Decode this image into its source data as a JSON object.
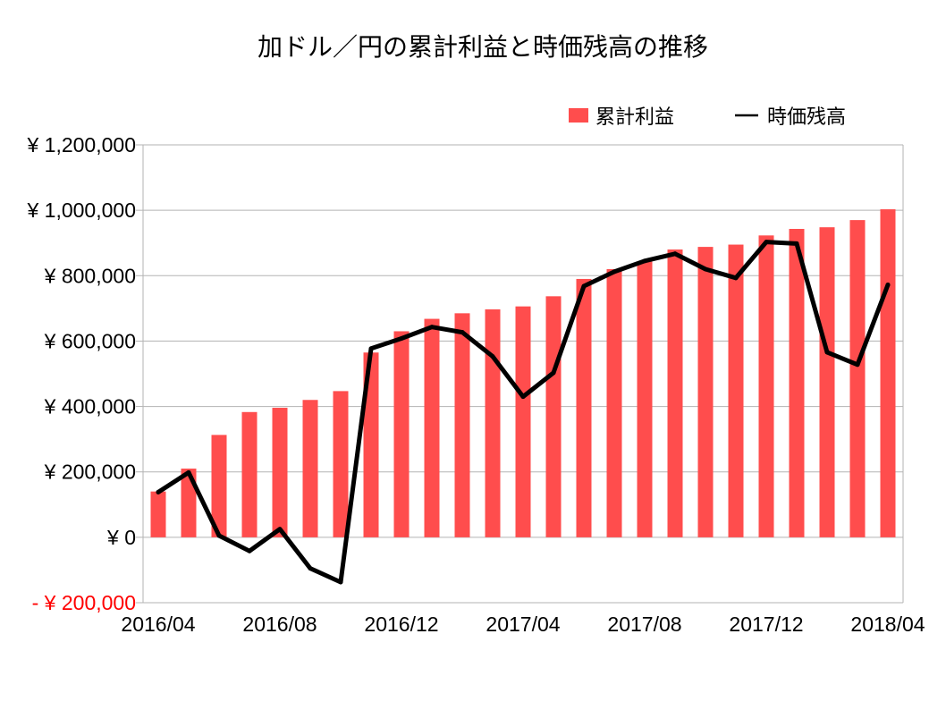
{
  "colors": {
    "bar": "#ff4d4d",
    "line": "#000000",
    "grid": "#b3b3b3",
    "negative": "#ff0000"
  },
  "chart_data": {
    "type": "bar+line",
    "title": "加ドル／円の累計利益と時価残高の推移",
    "xlabel": "",
    "ylabel": "",
    "ylim": [
      -200000,
      1200000
    ],
    "yticks": [
      1200000,
      1000000,
      800000,
      600000,
      400000,
      200000,
      0,
      -200000
    ],
    "ytick_labels": [
      "¥ 1,200,000",
      "¥ 1,000,000",
      "¥ 800,000",
      "¥ 600,000",
      "¥ 400,000",
      "¥ 200,000",
      "¥ 0",
      "- ¥ 200,000"
    ],
    "xtick_labels": [
      {
        "index": 0,
        "label": "2016/04"
      },
      {
        "index": 4,
        "label": "2016/08"
      },
      {
        "index": 8,
        "label": "2016/12"
      },
      {
        "index": 12,
        "label": "2017/04"
      },
      {
        "index": 16,
        "label": "2017/08"
      },
      {
        "index": 20,
        "label": "2017/12"
      },
      {
        "index": 24,
        "label": "2018/04"
      }
    ],
    "categories": [
      "2016/04",
      "2016/05",
      "2016/06",
      "2016/07",
      "2016/08",
      "2016/09",
      "2016/10",
      "2016/11",
      "2016/12",
      "2017/01",
      "2017/02",
      "2017/03",
      "2017/04",
      "2017/05",
      "2017/06",
      "2017/07",
      "2017/08",
      "2017/09",
      "2017/10",
      "2017/11",
      "2017/12",
      "2018/01",
      "2018/02",
      "2018/03",
      "2018/04"
    ],
    "series": [
      {
        "name": "累計利益",
        "kind": "bar",
        "values": [
          140000,
          210000,
          313000,
          383000,
          396000,
          420000,
          447000,
          565000,
          630000,
          668000,
          685000,
          697000,
          706000,
          737000,
          790000,
          820000,
          843000,
          880000,
          888000,
          895000,
          923000,
          943000,
          948000,
          970000,
          1003000
        ]
      },
      {
        "name": "時価残高",
        "kind": "line",
        "values": [
          138000,
          198000,
          5000,
          -42000,
          25000,
          -95000,
          -137000,
          577000,
          608000,
          643000,
          627000,
          553000,
          430000,
          503000,
          768000,
          812000,
          845000,
          867000,
          820000,
          793000,
          903000,
          898000,
          566000,
          528000,
          772000
        ]
      }
    ],
    "legend": [
      "累計利益",
      "時価残高"
    ],
    "legend_position": "top-right",
    "grid": true
  }
}
